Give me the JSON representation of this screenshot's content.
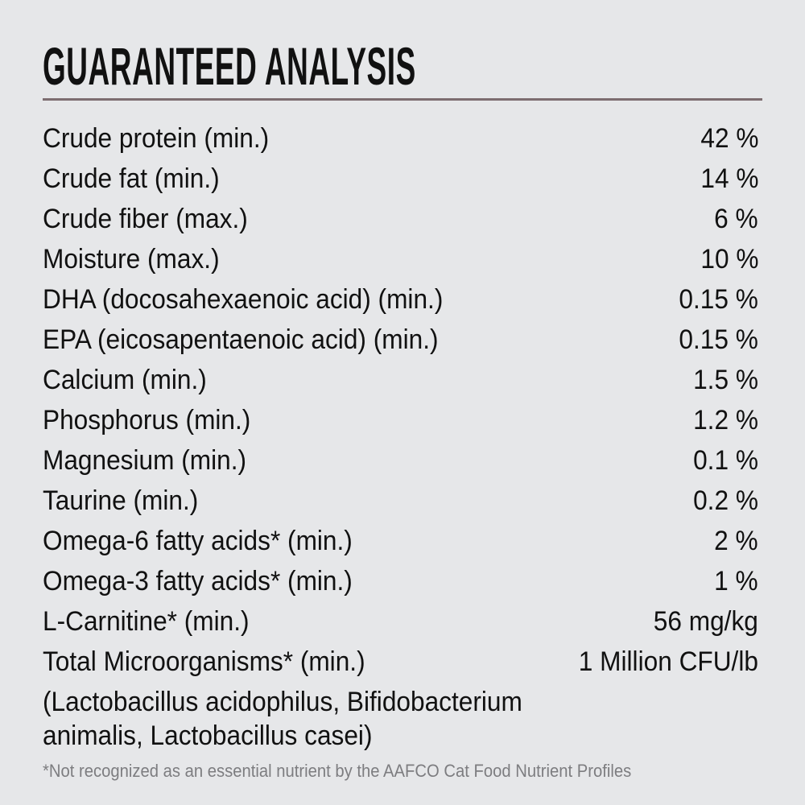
{
  "title": "GUARANTEED ANALYSIS",
  "rows": [
    {
      "label": "Crude protein (min.)",
      "value": "42 %"
    },
    {
      "label": "Crude fat (min.)",
      "value": "14 %"
    },
    {
      "label": "Crude fiber (max.)",
      "value": "6 %"
    },
    {
      "label": "Moisture (max.)",
      "value": "10 %"
    },
    {
      "label": "DHA (docosahexaenoic acid) (min.)",
      "value": "0.15 %"
    },
    {
      "label": "EPA (eicosapentaenoic acid) (min.)",
      "value": "0.15 %"
    },
    {
      "label": "Calcium (min.)",
      "value": "1.5 %"
    },
    {
      "label": "Phosphorus (min.)",
      "value": "1.2 %"
    },
    {
      "label": "Magnesium (min.)",
      "value": "0.1 %"
    },
    {
      "label": "Taurine (min.)",
      "value": "0.2 %"
    },
    {
      "label": "Omega-6 fatty acids* (min.)",
      "value": "2 %"
    },
    {
      "label": "Omega-3 fatty acids* (min.)",
      "value": "1 %"
    },
    {
      "label": "L-Carnitine* (min.)",
      "value": "56 mg/kg"
    },
    {
      "label": "Total Microorganisms* (min.)",
      "value": "1 Million CFU/lb"
    }
  ],
  "microorganisms_note": [
    "(Lactobacillus acidophilus, Bifidobacterium",
    "animalis, Lactobacillus casei)"
  ],
  "footnote": "*Not recognized as an essential nutrient by the AAFCO Cat Food Nutrient Profiles",
  "colors": {
    "background": "#e6e7e9",
    "rule": "#7d6d70",
    "text": "#111111",
    "footnote": "#7d7d80"
  }
}
